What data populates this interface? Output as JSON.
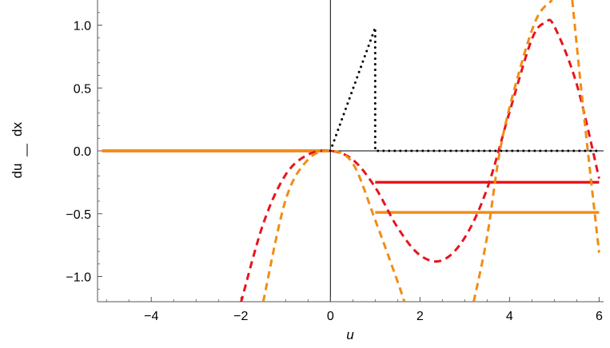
{
  "chart_data": {
    "type": "line",
    "title": "",
    "xlabel": "u",
    "ylabel_top": "dx",
    "ylabel_bottom": "du",
    "xlim": [
      -5.2,
      6.1
    ],
    "ylim": [
      -1.2,
      1.2
    ],
    "x_ticks": [
      -4,
      -2,
      0,
      2,
      4,
      6
    ],
    "x_tick_labels": [
      "−4",
      "−2",
      "0",
      "2",
      "4",
      "6"
    ],
    "y_ticks": [
      -1.0,
      -0.5,
      0.0,
      0.5,
      1.0
    ],
    "y_tick_labels": [
      "−1.0",
      "−0.5",
      "0.0",
      "0.5",
      "1.0"
    ],
    "grid": false,
    "legend": "none",
    "colors": {
      "red": "#e8141c",
      "orange": "#f28c14",
      "black": "#000000",
      "frame": "#555555"
    },
    "series": [
      {
        "color": "red",
        "style": "dashed",
        "x": [
          -2.0,
          -1.5,
          -1.0,
          -0.5,
          0.0,
          0.5,
          1.0,
          1.5,
          2.0,
          2.5,
          3.0,
          3.5,
          4.0,
          4.5,
          4.8,
          5.0,
          5.5,
          6.0
        ],
        "y": [
          -1.21,
          -0.58,
          -0.19,
          -0.03,
          0.0,
          -0.07,
          -0.29,
          -0.61,
          -0.83,
          -0.87,
          -0.69,
          -0.3,
          0.31,
          0.89,
          1.02,
          0.99,
          0.53,
          -0.22
        ]
      },
      {
        "color": "orange",
        "style": "dashed",
        "x": [
          -1.5,
          -1.0,
          -0.5,
          0.0,
          0.5,
          1.0,
          1.5,
          1.65
        ],
        "y": [
          -1.2,
          -0.39,
          -0.07,
          0.0,
          -0.1,
          -0.55,
          -1.04,
          -1.2
        ]
      },
      {
        "color": "orange",
        "style": "dashed",
        "x": [
          3.2,
          3.5,
          3.8,
          4.2,
          4.6,
          4.95
        ],
        "y": [
          -1.2,
          -0.68,
          0.03,
          0.61,
          1.05,
          1.2
        ]
      },
      {
        "color": "orange",
        "style": "dashed",
        "x": [
          5.4,
          5.6,
          5.8,
          6.0
        ],
        "y": [
          1.2,
          0.49,
          -0.17,
          -0.81
        ]
      },
      {
        "color": "red",
        "style": "solid",
        "x": [
          -5.1,
          0.0
        ],
        "y": [
          0.0,
          0.0
        ]
      },
      {
        "color": "orange",
        "style": "solid",
        "x": [
          -5.1,
          0.0
        ],
        "y": [
          0.0,
          0.0
        ]
      },
      {
        "color": "red",
        "style": "solid",
        "x": [
          1.0,
          6.0
        ],
        "y": [
          -0.25,
          -0.25
        ]
      },
      {
        "color": "orange",
        "style": "solid",
        "x": [
          1.0,
          6.0
        ],
        "y": [
          -0.49,
          -0.49
        ]
      },
      {
        "color": "black",
        "style": "dotted",
        "x": [
          0.0,
          1.0,
          1.0,
          6.0
        ],
        "y": [
          0.0,
          0.98,
          0.0,
          0.0
        ]
      }
    ]
  }
}
